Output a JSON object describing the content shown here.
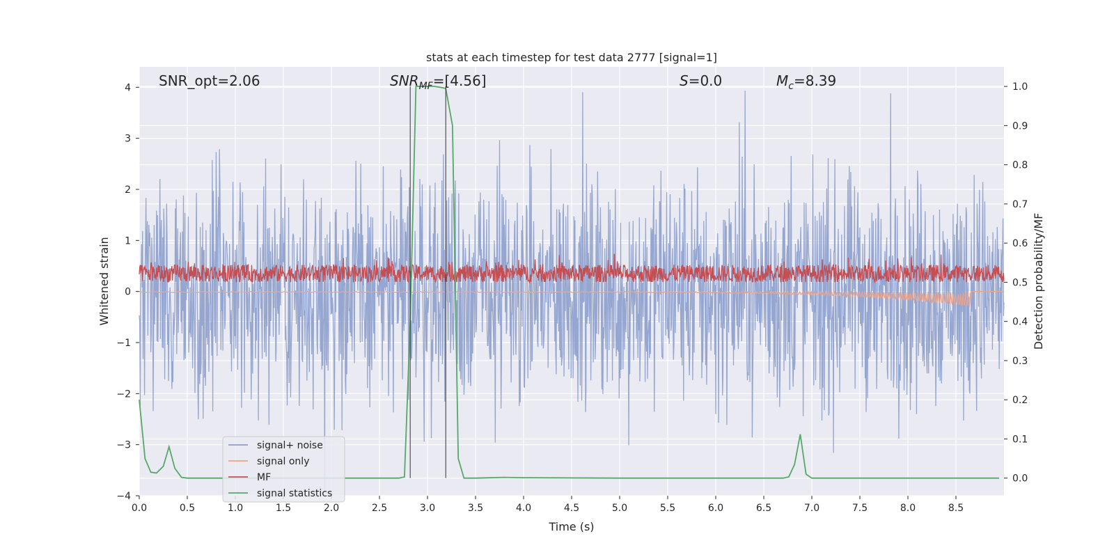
{
  "chart_data": {
    "type": "line",
    "title": "stats at each timestep for test data 2777 [signal=1]",
    "xlabel": "Time (s)",
    "ylabel": "Whitened strain",
    "ylabel_right": "Detection probability/MF",
    "xlim": [
      0.0,
      9.0
    ],
    "ylim": [
      -4.0,
      4.4
    ],
    "ylim_right": [
      -0.045,
      1.05
    ],
    "x_ticks": [
      0.0,
      0.5,
      1.0,
      1.5,
      2.0,
      2.5,
      3.0,
      3.5,
      4.0,
      4.5,
      5.0,
      5.5,
      6.0,
      6.5,
      7.0,
      7.5,
      8.0,
      8.5
    ],
    "x_tick_labels": [
      "0.0",
      "0.5",
      "1.0",
      "1.5",
      "2.0",
      "2.5",
      "3.0",
      "3.5",
      "4.0",
      "4.5",
      "5.0",
      "5.5",
      "6.0",
      "6.5",
      "7.0",
      "7.5",
      "8.0",
      "8.5"
    ],
    "y_ticks": [
      4,
      3,
      2,
      1,
      0,
      -1,
      -2,
      -3,
      -4
    ],
    "y_tick_labels": [
      "4",
      "3",
      "2",
      "1",
      "0",
      "−1",
      "−2",
      "−3",
      "−4"
    ],
    "y_right_ticks": [
      1.0,
      0.9,
      0.8,
      0.7,
      0.6,
      0.5,
      0.4,
      0.3,
      0.2,
      0.1,
      0.0
    ],
    "y_right_tick_labels": [
      "1.0",
      "0.9",
      "0.8",
      "0.7",
      "0.6",
      "0.5",
      "0.4",
      "0.3",
      "0.2",
      "0.1",
      "0.0"
    ],
    "grid": true,
    "legend_placement": "lower-left",
    "annotations": {
      "snr_opt": "SNR_opt=2.06",
      "snr_mf": "SNR",
      "snr_mf_sub": "MF",
      "snr_mf_value": "=[4.56]",
      "s_var": "S",
      "s_value": "=0.0",
      "mc_var": "M",
      "mc_sub": "c",
      "mc_value": "=8.39"
    },
    "vlines_x": [
      2.82,
      3.19
    ],
    "series": [
      {
        "name": "signal+ noise",
        "color": "#8c9fcc",
        "axis": "left",
        "description": "whitened strain noise, roughly within ±3, occasional peaks to 4"
      },
      {
        "name": "signal only",
        "color": "#e8a48c",
        "axis": "left",
        "description": "chirp signal, near zero, growing to about −0.3 near 8.65 s"
      },
      {
        "name": "MF",
        "color": "#c44e52",
        "axis": "right",
        "description": "matched-filter output, roughly 0.5–0.56 with spikes to ~0.58"
      },
      {
        "name": "signal statistics",
        "color": "#55a868",
        "axis": "right",
        "x": [
          0.0,
          0.06,
          0.12,
          0.18,
          0.25,
          0.31,
          0.37,
          0.44,
          0.5,
          0.6,
          1.0,
          2.0,
          2.7,
          2.76,
          2.82,
          2.88,
          2.95,
          3.01,
          3.07,
          3.13,
          3.19,
          3.26,
          3.32,
          3.38,
          3.5,
          3.8,
          4.0,
          5.0,
          6.0,
          6.5,
          6.7,
          6.76,
          6.82,
          6.88,
          6.94,
          7.0,
          8.0,
          8.95
        ],
        "values": [
          0.2,
          0.05,
          0.015,
          0.013,
          0.03,
          0.08,
          0.025,
          0.002,
          0.0,
          0.0,
          0.0,
          0.0,
          0.0,
          0.003,
          0.4,
          1.0,
          1.0,
          1.0,
          1.0,
          0.998,
          0.995,
          0.9,
          0.05,
          0.0,
          0.0,
          0.002,
          0.001,
          0.0,
          0.0,
          0.0,
          0.0,
          0.003,
          0.035,
          0.112,
          0.01,
          0.0,
          0.0,
          0.0
        ]
      }
    ],
    "legend": [
      "signal+ noise",
      "signal only",
      "MF",
      "signal statistics"
    ]
  }
}
